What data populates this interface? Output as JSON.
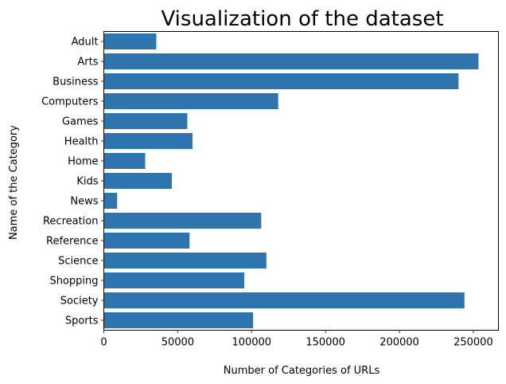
{
  "chart_data": {
    "type": "bar",
    "orientation": "horizontal",
    "title": "Visualization of the dataset",
    "xlabel": "Number of Categories of URLs",
    "ylabel": "Name of the Category",
    "categories": [
      "Adult",
      "Arts",
      "Business",
      "Computers",
      "Games",
      "Health",
      "Home",
      "Kids",
      "News",
      "Recreation",
      "Reference",
      "Science",
      "Shopping",
      "Society",
      "Sports"
    ],
    "values": [
      35500,
      253500,
      240000,
      118000,
      56500,
      60000,
      28000,
      46000,
      9000,
      106500,
      58000,
      110000,
      95000,
      244000,
      101000
    ],
    "xlim": [
      0,
      267000
    ],
    "xticks": [
      0,
      50000,
      100000,
      150000,
      200000,
      250000
    ],
    "bar_color": "#2e75b0",
    "grid": false,
    "legend": "none"
  }
}
